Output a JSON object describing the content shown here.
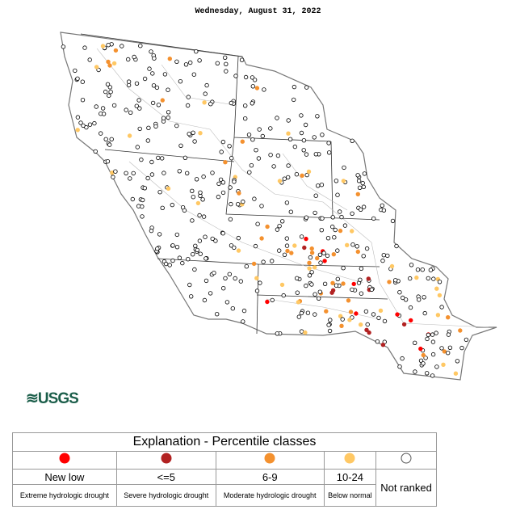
{
  "header": {
    "title": "Wednesday, August 31, 2022"
  },
  "logo": "USGS",
  "legend": {
    "title": "Explanation - Percentile classes",
    "classes": [
      {
        "label": "New low",
        "description": "Extreme hydrologic drought",
        "color": "#ff0000"
      },
      {
        "label": "<=5",
        "description": "Severe hydrologic drought",
        "color": "#b22222"
      },
      {
        "label": "6-9",
        "description": "Moderate hydrologic drought",
        "color": "#f4912f"
      },
      {
        "label": "10-24",
        "description": "Below normal",
        "color": "#ffc864"
      },
      {
        "label": "Not ranked",
        "color": "#ffffff"
      }
    ]
  }
}
